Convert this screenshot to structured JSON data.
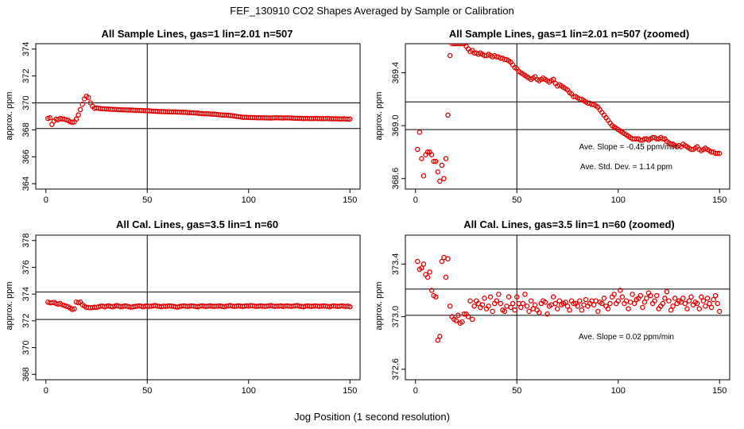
{
  "figure": {
    "title": "FEF_130910  CO2 Shapes Averaged by Sample or Calibration",
    "xlabel": "Jog Position (1 second resolution)"
  },
  "style": {
    "point_color": "#e00000",
    "line_color": "#000000"
  },
  "chart_data": [
    {
      "type": "scatter",
      "title": "All Sample Lines, gas=1 lin=2.01 n=507",
      "ylabel": "approx. ppm",
      "xlim": [
        -5,
        155
      ],
      "ylim": [
        363.6,
        374.4
      ],
      "xticks": [
        0,
        50,
        100,
        150
      ],
      "yticks": [
        364,
        366,
        368,
        370,
        372,
        374
      ],
      "hlines": [
        368.1,
        370.0
      ],
      "vlines": [
        50
      ],
      "annotations": [],
      "x": [
        1,
        2,
        3,
        4,
        5,
        6,
        7,
        8,
        9,
        10,
        11,
        12,
        13,
        14,
        15,
        16,
        17,
        18,
        19,
        20,
        21,
        22,
        23,
        24,
        25,
        26,
        27,
        28,
        29,
        30,
        31,
        32,
        33,
        34,
        35,
        36,
        37,
        38,
        39,
        40,
        41,
        42,
        43,
        44,
        45,
        46,
        47,
        48,
        49,
        50,
        51,
        52,
        53,
        54,
        55,
        56,
        57,
        58,
        59,
        60,
        61,
        62,
        63,
        64,
        65,
        66,
        67,
        68,
        69,
        70,
        71,
        72,
        73,
        74,
        75,
        76,
        77,
        78,
        79,
        80,
        81,
        82,
        83,
        84,
        85,
        86,
        87,
        88,
        89,
        90,
        91,
        92,
        93,
        94,
        95,
        96,
        97,
        98,
        99,
        100,
        101,
        102,
        103,
        104,
        105,
        106,
        107,
        108,
        109,
        110,
        111,
        112,
        113,
        114,
        115,
        116,
        117,
        118,
        119,
        120,
        121,
        122,
        123,
        124,
        125,
        126,
        127,
        128,
        129,
        130,
        131,
        132,
        133,
        134,
        135,
        136,
        137,
        138,
        139,
        140,
        141,
        142,
        143,
        144,
        145,
        146,
        147,
        148,
        149,
        150
      ],
      "y": [
        368.85,
        368.9,
        368.4,
        368.65,
        368.8,
        368.75,
        368.85,
        368.8,
        368.8,
        368.75,
        368.7,
        368.6,
        368.55,
        368.6,
        368.8,
        369.1,
        369.5,
        369.9,
        370.3,
        370.5,
        370.4,
        370.0,
        369.75,
        369.6,
        369.62,
        369.6,
        369.58,
        369.57,
        369.56,
        369.55,
        369.54,
        369.53,
        369.52,
        369.52,
        369.51,
        369.5,
        369.49,
        369.49,
        369.48,
        369.48,
        369.47,
        369.47,
        369.46,
        369.45,
        369.45,
        369.44,
        369.44,
        369.43,
        369.42,
        369.42,
        369.41,
        369.4,
        369.38,
        369.38,
        369.37,
        369.36,
        369.36,
        369.35,
        369.35,
        369.34,
        369.34,
        369.33,
        369.33,
        369.33,
        369.32,
        369.32,
        369.31,
        369.3,
        369.3,
        369.28,
        369.28,
        369.27,
        369.26,
        369.25,
        369.24,
        369.22,
        369.21,
        369.2,
        369.2,
        369.19,
        369.18,
        369.17,
        369.16,
        369.15,
        369.13,
        369.12,
        369.1,
        369.1,
        369.09,
        369.08,
        369.07,
        369.05,
        369.03,
        369.0,
        368.98,
        368.96,
        368.94,
        368.93,
        368.93,
        368.92,
        368.92,
        368.91,
        368.91,
        368.9,
        368.9,
        368.9,
        368.9,
        368.89,
        368.89,
        368.88,
        368.88,
        368.89,
        368.9,
        368.9,
        368.89,
        368.89,
        368.88,
        368.89,
        368.89,
        368.89,
        368.88,
        368.87,
        368.86,
        368.86,
        368.85,
        368.85,
        368.84,
        368.85,
        368.85,
        368.84,
        368.84,
        368.84,
        368.85,
        368.84,
        368.84,
        368.83,
        368.83,
        368.84,
        368.84,
        368.83,
        368.82,
        368.82,
        368.82,
        368.82,
        368.81,
        368.81,
        368.82,
        368.81,
        368.8,
        368.8
      ]
    },
    {
      "type": "scatter",
      "title": "All Sample Lines, gas=1 lin=2.01 n=507 (zoomed)",
      "ylabel": "approx. ppm",
      "xlim": [
        -5,
        155
      ],
      "ylim": [
        368.52,
        369.62
      ],
      "xticks": [
        0,
        50,
        100,
        150
      ],
      "yticks": [
        368.6,
        369.0,
        369.4
      ],
      "hlines": [
        368.97,
        369.18
      ],
      "vlines": [
        50
      ],
      "annotations": [
        "Ave. Slope =  -0.45  ppm/min",
        "Ave. Std. Dev. =  1.14  ppm"
      ],
      "x": [
        1,
        2,
        3,
        4,
        5,
        6,
        7,
        8,
        9,
        10,
        11,
        12,
        13,
        14,
        15,
        16,
        17,
        18,
        19,
        20,
        21,
        22,
        23,
        24,
        25,
        26,
        27,
        28,
        29,
        30,
        31,
        32,
        33,
        34,
        35,
        36,
        37,
        38,
        39,
        40,
        41,
        42,
        43,
        44,
        45,
        46,
        47,
        48,
        49,
        50,
        51,
        52,
        53,
        54,
        55,
        56,
        57,
        58,
        59,
        60,
        61,
        62,
        63,
        64,
        65,
        66,
        67,
        68,
        69,
        70,
        71,
        72,
        73,
        74,
        75,
        76,
        77,
        78,
        79,
        80,
        81,
        82,
        83,
        84,
        85,
        86,
        87,
        88,
        89,
        90,
        91,
        92,
        93,
        94,
        95,
        96,
        97,
        98,
        99,
        100,
        101,
        102,
        103,
        104,
        105,
        106,
        107,
        108,
        109,
        110,
        111,
        112,
        113,
        114,
        115,
        116,
        117,
        118,
        119,
        120,
        121,
        122,
        123,
        124,
        125,
        126,
        127,
        128,
        129,
        130,
        131,
        132,
        133,
        134,
        135,
        136,
        137,
        138,
        139,
        140,
        141,
        142,
        143,
        144,
        145,
        146,
        147,
        148,
        149,
        150
      ],
      "y": [
        368.82,
        368.95,
        368.75,
        368.62,
        368.78,
        368.8,
        368.8,
        368.78,
        368.73,
        368.73,
        368.65,
        368.58,
        368.7,
        368.6,
        368.75,
        369.08,
        369.53,
        369.62,
        369.62,
        369.62,
        369.62,
        369.62,
        369.62,
        369.62,
        369.6,
        369.58,
        369.56,
        369.57,
        369.55,
        369.55,
        369.54,
        369.55,
        369.54,
        369.53,
        369.53,
        369.54,
        369.53,
        369.52,
        369.53,
        369.52,
        369.52,
        369.51,
        369.51,
        369.5,
        369.5,
        369.49,
        369.48,
        369.46,
        369.44,
        369.43,
        369.41,
        369.4,
        369.39,
        369.38,
        369.37,
        369.36,
        369.35,
        369.36,
        369.37,
        369.35,
        369.34,
        369.35,
        369.36,
        369.35,
        369.34,
        369.33,
        369.34,
        369.35,
        369.32,
        369.3,
        369.31,
        369.3,
        369.29,
        369.28,
        369.27,
        369.25,
        369.24,
        369.22,
        369.22,
        369.21,
        369.2,
        369.2,
        369.19,
        369.18,
        369.17,
        369.17,
        369.16,
        369.16,
        369.15,
        369.14,
        369.12,
        369.1,
        369.08,
        369.06,
        369.04,
        369.02,
        369.0,
        368.99,
        368.98,
        368.97,
        368.96,
        368.95,
        368.94,
        368.93,
        368.92,
        368.91,
        368.9,
        368.9,
        368.9,
        368.9,
        368.89,
        368.89,
        368.9,
        368.9,
        368.89,
        368.9,
        368.91,
        368.91,
        368.9,
        368.9,
        368.91,
        368.9,
        368.9,
        368.88,
        368.87,
        368.86,
        368.86,
        368.85,
        368.84,
        368.85,
        368.84,
        368.86,
        368.85,
        368.84,
        368.83,
        368.82,
        368.82,
        368.83,
        368.84,
        368.82,
        368.81,
        368.82,
        368.83,
        368.82,
        368.81,
        368.8,
        368.8,
        368.79,
        368.79,
        368.79
      ]
    },
    {
      "type": "scatter",
      "title": "All Cal. Lines, gas=3.5 lin=1 n=60",
      "ylabel": "approx. ppm",
      "xlim": [
        -5,
        155
      ],
      "ylim": [
        367.6,
        378.4
      ],
      "xticks": [
        0,
        50,
        100,
        150
      ],
      "yticks": [
        368,
        370,
        372,
        374,
        376,
        378
      ],
      "hlines": [
        372.1,
        374.15
      ],
      "vlines": [
        50
      ],
      "annotations": [],
      "x": [
        1,
        2,
        3,
        4,
        5,
        6,
        7,
        8,
        9,
        10,
        11,
        12,
        13,
        14,
        15,
        16,
        17,
        18,
        19,
        20,
        21,
        22,
        23,
        24,
        25,
        26,
        27,
        28,
        29,
        30,
        31,
        32,
        33,
        34,
        35,
        36,
        37,
        38,
        39,
        40,
        41,
        42,
        43,
        44,
        45,
        46,
        47,
        48,
        49,
        50,
        51,
        52,
        53,
        54,
        55,
        56,
        57,
        58,
        59,
        60,
        61,
        62,
        63,
        64,
        65,
        66,
        67,
        68,
        69,
        70,
        71,
        72,
        73,
        74,
        75,
        76,
        77,
        78,
        79,
        80,
        81,
        82,
        83,
        84,
        85,
        86,
        87,
        88,
        89,
        90,
        91,
        92,
        93,
        94,
        95,
        96,
        97,
        98,
        99,
        100,
        101,
        102,
        103,
        104,
        105,
        106,
        107,
        108,
        109,
        110,
        111,
        112,
        113,
        114,
        115,
        116,
        117,
        118,
        119,
        120,
        121,
        122,
        123,
        124,
        125,
        126,
        127,
        128,
        129,
        130,
        131,
        132,
        133,
        134,
        135,
        136,
        137,
        138,
        139,
        140,
        141,
        142,
        143,
        144,
        145,
        146,
        147,
        148,
        149,
        150
      ],
      "y": [
        373.4,
        373.35,
        373.35,
        373.38,
        373.3,
        373.25,
        373.3,
        373.2,
        373.15,
        373.1,
        373.05,
        372.95,
        372.85,
        372.9,
        373.4,
        373.35,
        373.4,
        373.2,
        373.1,
        373.0,
        373.0,
        372.98,
        373.0,
        373.02,
        373.0,
        373.05,
        373.1,
        373.1,
        373.05,
        373.1,
        373.12,
        373.08,
        373.05,
        373.1,
        373.15,
        373.1,
        373.05,
        373.08,
        373.12,
        373.1,
        373.05,
        373.02,
        373.05,
        373.08,
        373.1,
        373.12,
        373.1,
        373.05,
        373.1,
        373.12,
        373.08,
        373.1,
        373.12,
        373.15,
        373.1,
        373.08,
        373.05,
        373.1,
        373.08,
        373.1,
        373.12,
        373.1,
        373.08,
        373.05,
        373.02,
        373.08,
        373.1,
        373.12,
        373.1,
        373.08,
        373.1,
        373.12,
        373.1,
        373.08,
        373.05,
        373.1,
        373.12,
        373.1,
        373.08,
        373.1,
        373.12,
        373.1,
        373.08,
        373.1,
        373.1,
        373.12,
        373.08,
        373.05,
        373.1,
        373.12,
        373.15,
        373.1,
        373.08,
        373.1,
        373.12,
        373.1,
        373.08,
        373.1,
        373.12,
        373.1,
        373.15,
        373.12,
        373.1,
        373.08,
        373.1,
        373.12,
        373.1,
        373.08,
        373.1,
        373.12,
        373.15,
        373.1,
        373.08,
        373.1,
        373.1,
        373.12,
        373.08,
        373.1,
        373.12,
        373.1,
        373.08,
        373.1,
        373.12,
        373.15,
        373.1,
        373.08,
        373.05,
        373.1,
        373.12,
        373.1,
        373.08,
        373.1,
        373.12,
        373.1,
        373.08,
        373.1,
        373.12,
        373.1,
        373.08,
        373.05,
        373.1,
        373.12,
        373.1,
        373.08,
        373.1,
        373.12,
        373.1,
        373.08,
        373.1,
        373.05
      ]
    },
    {
      "type": "scatter",
      "title": "All Cal. Lines, gas=3.5 lin=1 n=60 (zoomed)",
      "ylabel": "approx. ppm",
      "xlim": [
        -5,
        155
      ],
      "ylim": [
        372.52,
        373.62
      ],
      "xticks": [
        0,
        50,
        100,
        150
      ],
      "yticks": [
        372.6,
        373.0,
        373.4
      ],
      "hlines": [
        373.01,
        373.21
      ],
      "vlines": [
        50
      ],
      "annotations": [
        "Ave. Slope =  0.02  ppm/min"
      ],
      "x": [
        1,
        2,
        3,
        4,
        5,
        6,
        7,
        8,
        9,
        10,
        11,
        12,
        13,
        14,
        15,
        16,
        17,
        18,
        19,
        20,
        21,
        22,
        23,
        24,
        25,
        26,
        27,
        28,
        29,
        30,
        31,
        32,
        33,
        34,
        35,
        36,
        37,
        38,
        39,
        40,
        41,
        42,
        43,
        44,
        45,
        46,
        47,
        48,
        49,
        50,
        51,
        52,
        53,
        54,
        55,
        56,
        57,
        58,
        59,
        60,
        61,
        62,
        63,
        64,
        65,
        66,
        67,
        68,
        69,
        70,
        71,
        72,
        73,
        74,
        75,
        76,
        77,
        78,
        79,
        80,
        81,
        82,
        83,
        84,
        85,
        86,
        87,
        88,
        89,
        90,
        91,
        92,
        93,
        94,
        95,
        96,
        97,
        98,
        99,
        100,
        101,
        102,
        103,
        104,
        105,
        106,
        107,
        108,
        109,
        110,
        111,
        112,
        113,
        114,
        115,
        116,
        117,
        118,
        119,
        120,
        121,
        122,
        123,
        124,
        125,
        126,
        127,
        128,
        129,
        130,
        131,
        132,
        133,
        134,
        135,
        136,
        137,
        138,
        139,
        140,
        141,
        142,
        143,
        144,
        145,
        146,
        147,
        148,
        149,
        150
      ],
      "y": [
        373.42,
        373.36,
        373.37,
        373.4,
        373.32,
        373.3,
        373.34,
        373.2,
        373.16,
        373.15,
        372.82,
        372.85,
        373.42,
        373.45,
        373.3,
        373.44,
        373.08,
        373.0,
        372.98,
        372.97,
        373.01,
        372.95,
        372.96,
        373.02,
        373.02,
        373.0,
        373.12,
        372.98,
        373.08,
        373.12,
        373.1,
        373.07,
        373.09,
        373.14,
        373.06,
        373.08,
        373.15,
        373.04,
        373.1,
        373.12,
        373.17,
        373.1,
        373.05,
        373.04,
        373.08,
        373.15,
        373.07,
        373.1,
        373.05,
        373.15,
        373.1,
        373.07,
        373.1,
        373.17,
        373.08,
        373.04,
        373.12,
        373.06,
        373.09,
        373.05,
        373.03,
        373.1,
        373.12,
        373.11,
        373.02,
        373.08,
        373.09,
        373.15,
        373.1,
        373.06,
        373.12,
        373.09,
        373.1,
        373.11,
        373.08,
        373.05,
        373.12,
        373.1,
        373.1,
        373.08,
        373.12,
        373.05,
        373.09,
        373.13,
        373.08,
        373.1,
        373.12,
        373.09,
        373.12,
        373.04,
        373.11,
        373.1,
        373.14,
        373.08,
        373.06,
        373.1,
        373.15,
        373.17,
        373.1,
        373.12,
        373.2,
        373.15,
        373.1,
        373.12,
        373.06,
        373.11,
        373.17,
        373.1,
        373.13,
        373.14,
        373.16,
        373.07,
        373.11,
        373.14,
        373.18,
        373.16,
        373.1,
        373.12,
        373.16,
        373.06,
        373.08,
        373.1,
        373.14,
        373.19,
        373.12,
        373.05,
        373.08,
        373.14,
        373.1,
        373.12,
        373.11,
        373.14,
        373.1,
        373.06,
        373.12,
        373.15,
        373.09,
        373.11,
        373.1,
        373.06,
        373.15,
        373.12,
        373.08,
        373.14,
        373.1,
        373.07,
        373.13,
        373.16,
        373.1,
        373.04
      ]
    }
  ]
}
